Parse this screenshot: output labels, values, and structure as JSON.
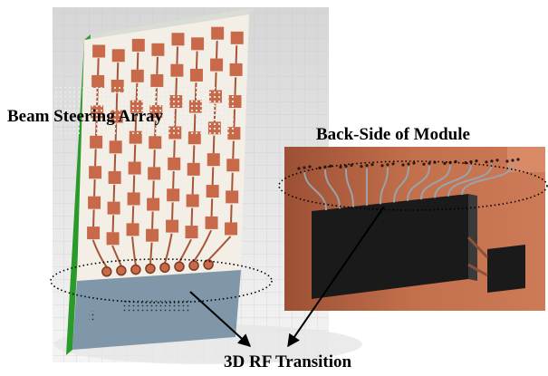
{
  "labels": {
    "beam_steering_array": "Beam Steering Array",
    "back_side_of_module": "Back-Side of Module",
    "rf_transition": "3D RF Transition"
  },
  "colors": {
    "background_grid": "#d9d9d9",
    "board_face": "#f3eee6",
    "board_edge_green": "#2a9a2a",
    "copper": "#c86a49",
    "copper_dark": "#a85537",
    "transition_panel": "#7f97a8",
    "module_body": "#b5623f",
    "chip_black": "#1a1a1a",
    "trace_silver": "#9aa3aa"
  },
  "figure": {
    "array_columns": 8,
    "array_rows": 7,
    "transition_ports": 8,
    "callout_style": "dotted-ellipse",
    "arrows": "two arrows converging on the 3D RF Transition label"
  }
}
